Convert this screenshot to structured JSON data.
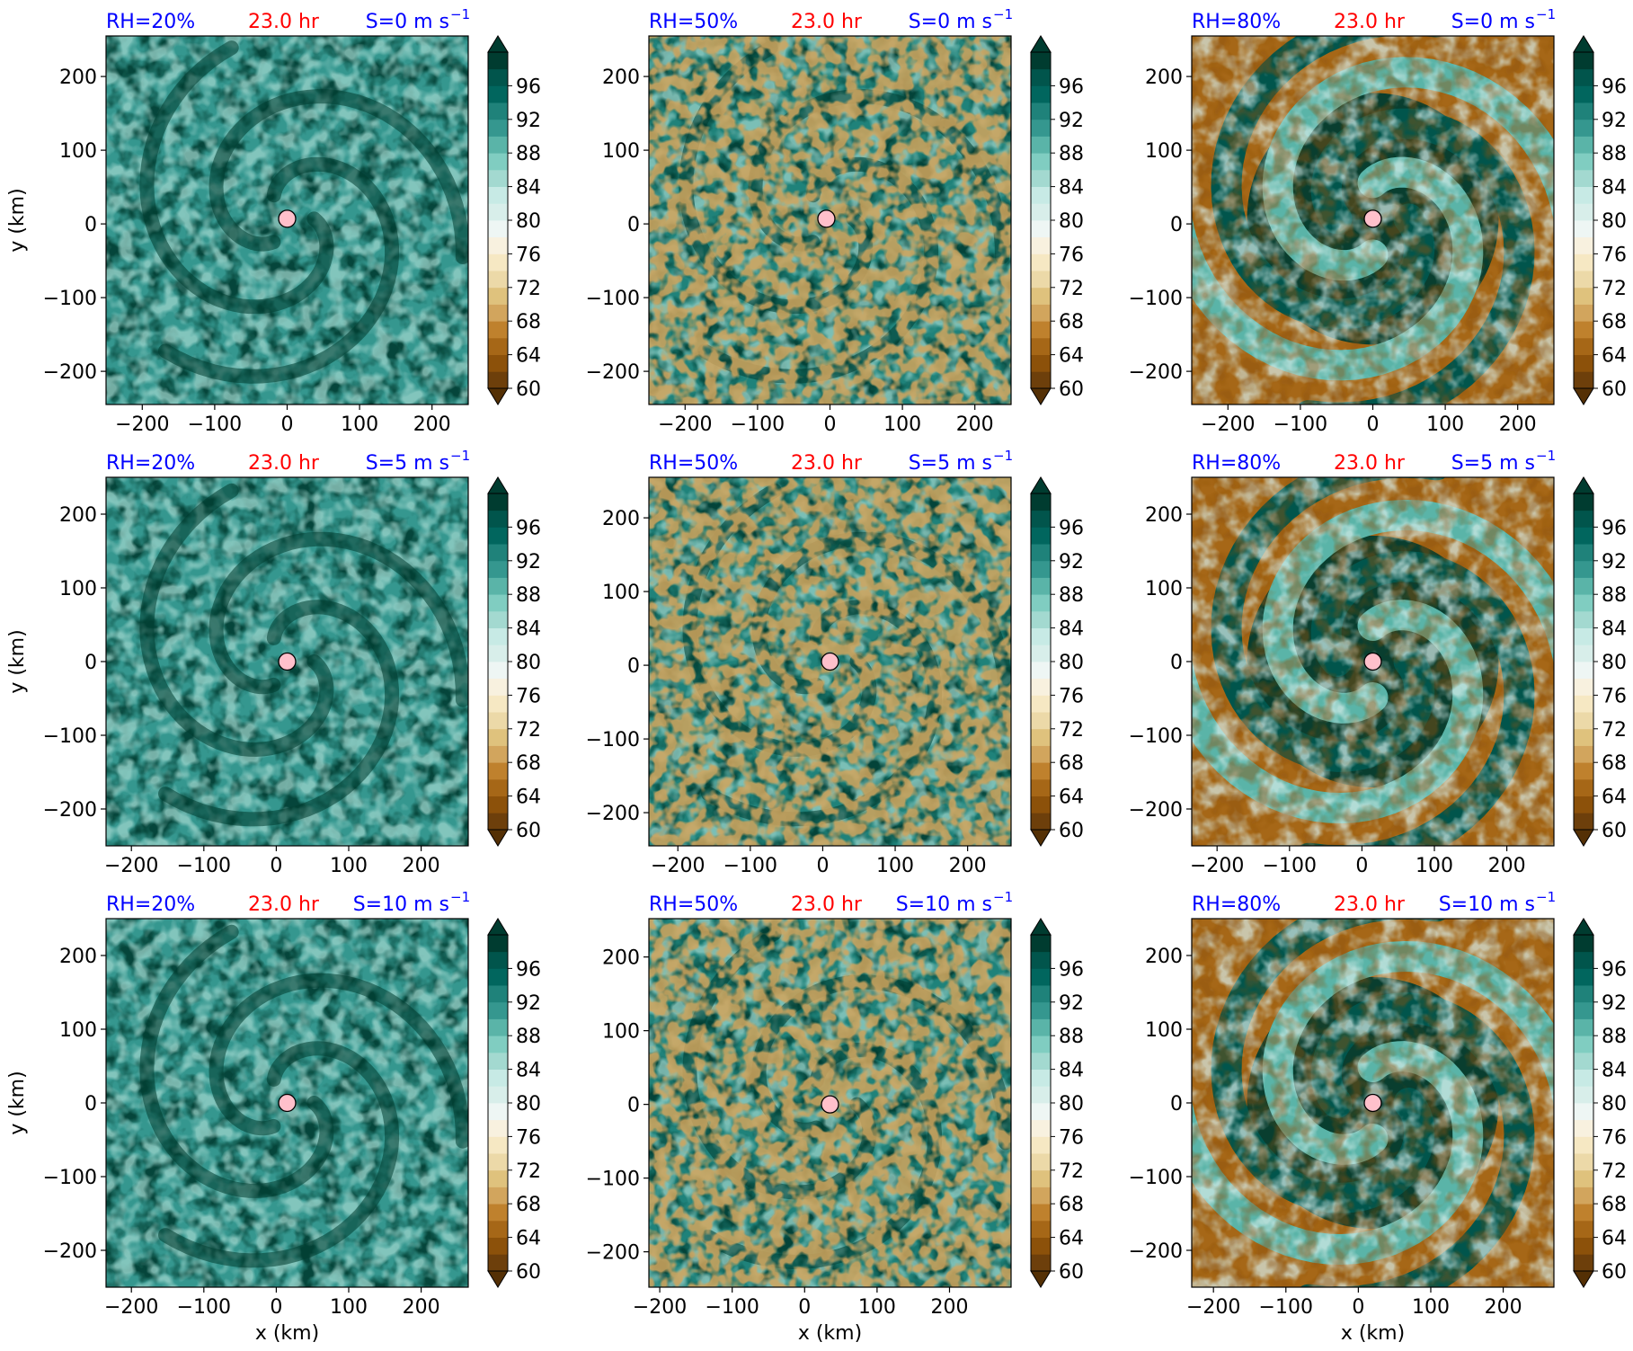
{
  "chart_data": [
    {
      "type": "heatmap",
      "title": {
        "rh": "RH=20%",
        "time": "23.0 hr",
        "shear": "S=0 m s",
        "shear_exp": "−1"
      },
      "xlabel": "",
      "ylabel": "y (km)",
      "xlim": [
        -250,
        250
      ],
      "ylim": [
        -245,
        255
      ],
      "xticks": [
        -200,
        -100,
        0,
        100,
        200
      ],
      "yticks": [
        -200,
        -100,
        0,
        100,
        200
      ],
      "center": [
        0,
        7
      ],
      "rh_background": 20
    },
    {
      "type": "heatmap",
      "title": {
        "rh": "RH=50%",
        "time": "23.0 hr",
        "shear": "S=0 m s",
        "shear_exp": "−1"
      },
      "xlabel": "",
      "ylabel": "",
      "xlim": [
        -250,
        250
      ],
      "ylim": [
        -245,
        255
      ],
      "xticks": [
        -200,
        -100,
        0,
        100,
        200
      ],
      "yticks": [
        -200,
        -100,
        0,
        100,
        200
      ],
      "center": [
        -5,
        7
      ],
      "rh_background": 50
    },
    {
      "type": "heatmap",
      "title": {
        "rh": "RH=80%",
        "time": "23.0 hr",
        "shear": "S=0 m s",
        "shear_exp": "−1"
      },
      "xlabel": "",
      "ylabel": "",
      "xlim": [
        -250,
        250
      ],
      "ylim": [
        -245,
        255
      ],
      "xticks": [
        -200,
        -100,
        0,
        100,
        200
      ],
      "yticks": [
        -200,
        -100,
        0,
        100,
        200
      ],
      "center": [
        0,
        7
      ],
      "rh_background": 80
    },
    {
      "type": "heatmap",
      "title": {
        "rh": "RH=20%",
        "time": "23.0 hr",
        "shear": "S=5 m s",
        "shear_exp": "−1"
      },
      "xlabel": "",
      "ylabel": "y (km)",
      "xlim": [
        -235,
        265
      ],
      "ylim": [
        -250,
        250
      ],
      "xticks": [
        -200,
        -100,
        0,
        100,
        200
      ],
      "yticks": [
        -200,
        -100,
        0,
        100,
        200
      ],
      "center": [
        15,
        0
      ],
      "rh_background": 20
    },
    {
      "type": "heatmap",
      "title": {
        "rh": "RH=50%",
        "time": "23.0 hr",
        "shear": "S=5 m s",
        "shear_exp": "−1"
      },
      "xlabel": "",
      "ylabel": "",
      "xlim": [
        -240,
        260
      ],
      "ylim": [
        -245,
        255
      ],
      "xticks": [
        -200,
        -100,
        0,
        100,
        200
      ],
      "yticks": [
        -200,
        -100,
        0,
        100,
        200
      ],
      "center": [
        10,
        5
      ],
      "rh_background": 50
    },
    {
      "type": "heatmap",
      "title": {
        "rh": "RH=80%",
        "time": "23.0 hr",
        "shear": "S=5 m s",
        "shear_exp": "−1"
      },
      "xlabel": "",
      "ylabel": "",
      "xlim": [
        -235,
        265
      ],
      "ylim": [
        -250,
        250
      ],
      "xticks": [
        -200,
        -100,
        0,
        100,
        200
      ],
      "yticks": [
        -200,
        -100,
        0,
        100,
        200
      ],
      "center": [
        15,
        0
      ],
      "rh_background": 80
    },
    {
      "type": "heatmap",
      "title": {
        "rh": "RH=20%",
        "time": "23.0 hr",
        "shear": "S=10 m s",
        "shear_exp": "−1"
      },
      "xlabel": "x (km)",
      "ylabel": "y (km)",
      "xlim": [
        -235,
        265
      ],
      "ylim": [
        -250,
        250
      ],
      "xticks": [
        -200,
        -100,
        0,
        100,
        200
      ],
      "yticks": [
        -200,
        -100,
        0,
        100,
        200
      ],
      "center": [
        15,
        0
      ],
      "rh_background": 20
    },
    {
      "type": "heatmap",
      "title": {
        "rh": "RH=50%",
        "time": "23.0 hr",
        "shear": "S=10 m s",
        "shear_exp": "−1"
      },
      "xlabel": "x (km)",
      "ylabel": "",
      "xlim": [
        -215,
        285
      ],
      "ylim": [
        -248,
        252
      ],
      "xticks": [
        -200,
        -100,
        0,
        100,
        200
      ],
      "yticks": [
        -200,
        -100,
        0,
        100,
        200
      ],
      "center": [
        35,
        0
      ],
      "rh_background": 50
    },
    {
      "type": "heatmap",
      "title": {
        "rh": "RH=80%",
        "time": "23.0 hr",
        "shear": "S=10 m s",
        "shear_exp": "−1"
      },
      "xlabel": "x (km)",
      "ylabel": "",
      "xlim": [
        -230,
        270
      ],
      "ylim": [
        -250,
        250
      ],
      "xticks": [
        -200,
        -100,
        0,
        100,
        200
      ],
      "yticks": [
        -200,
        -100,
        0,
        100,
        200
      ],
      "center": [
        20,
        0
      ],
      "rh_background": 80
    }
  ],
  "colorbar": {
    "ticks": [
      96,
      92,
      88,
      84,
      80,
      76,
      72,
      68,
      64,
      60
    ],
    "levels": [
      60,
      62,
      64,
      66,
      68,
      70,
      72,
      74,
      76,
      78,
      80,
      82,
      84,
      86,
      88,
      90,
      92,
      94,
      96,
      98,
      100
    ],
    "extend": "both",
    "colors": [
      "#543005",
      "#6d3f0b",
      "#8c510a",
      "#a66717",
      "#bf812d",
      "#d2a55d",
      "#dfc27d",
      "#ecd9a8",
      "#f6e8c3",
      "#f8f1df",
      "#eef6f4",
      "#d8eeea",
      "#c7eae5",
      "#a3d9d0",
      "#80cdc1",
      "#5ab4a8",
      "#35978f",
      "#1f827a",
      "#01665e",
      "#01554c",
      "#003c30"
    ]
  },
  "colors": {
    "title_rh": "#0000ff",
    "title_time": "#ff0000",
    "title_shear": "#0000ff",
    "center_marker": "#ffc0cb"
  }
}
